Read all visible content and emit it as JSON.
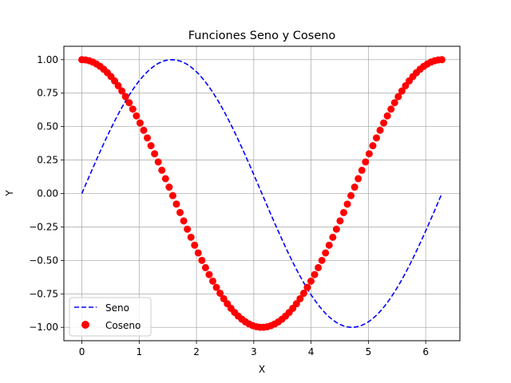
{
  "chart_data": {
    "type": "line",
    "title": "Funciones Seno y Coseno",
    "xlabel": "X",
    "ylabel": "Y",
    "xlim": [
      -0.314,
      6.597
    ],
    "ylim": [
      -1.1,
      1.1
    ],
    "xticks": [
      0,
      1,
      2,
      3,
      4,
      5,
      6
    ],
    "xtick_labels": [
      "0",
      "1",
      "2",
      "3",
      "4",
      "5",
      "6"
    ],
    "yticks": [
      -1.0,
      -0.75,
      -0.5,
      -0.25,
      0.0,
      0.25,
      0.5,
      0.75,
      1.0
    ],
    "ytick_labels": [
      "−1.00",
      "−0.75",
      "−0.50",
      "−0.25",
      "0.00",
      "0.25",
      "0.50",
      "0.75",
      "1.00"
    ],
    "grid": true,
    "legend_position": "lower-left",
    "x_range": [
      0,
      6.283
    ],
    "sample_count": 100,
    "series": [
      {
        "name": "Seno",
        "function": "sin(x)",
        "style": "dashed-line",
        "color": "#0000ff"
      },
      {
        "name": "Coseno",
        "function": "cos(x)",
        "style": "scatter",
        "color": "#ff0000"
      }
    ]
  }
}
